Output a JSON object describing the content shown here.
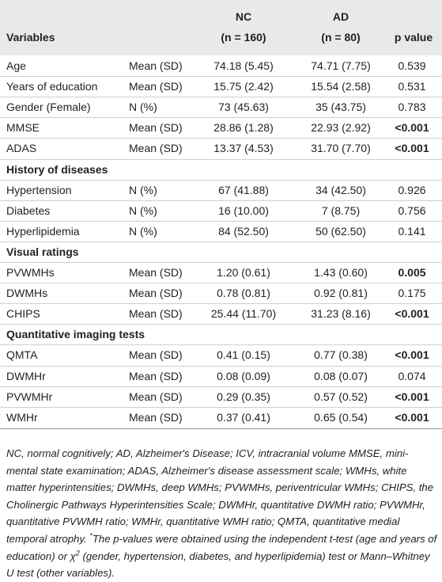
{
  "table": {
    "header": {
      "variables": "Variables",
      "nc": "NC",
      "nc_n": "(n = 160)",
      "ad": "AD",
      "ad_n": "(n = 80)",
      "p": "p value"
    },
    "rows": [
      {
        "variable": "Age",
        "measure": "Mean (SD)",
        "nc": "74.18 (5.45)",
        "ad": "74.71 (7.75)",
        "p": "0.539"
      },
      {
        "variable": "Years of education",
        "measure": "Mean (SD)",
        "nc": "15.75 (2.42)",
        "ad": "15.54 (2.58)",
        "p": "0.531"
      },
      {
        "variable": "Gender (Female)",
        "measure": "N (%)",
        "nc": "73 (45.63)",
        "ad": "35 (43.75)",
        "p": "0.783"
      },
      {
        "variable": "MMSE",
        "measure": "Mean (SD)",
        "nc": "28.86 (1.28)",
        "ad": "22.93 (2.92)",
        "p": "<0.001",
        "bold": true
      },
      {
        "variable": "ADAS",
        "measure": "Mean (SD)",
        "nc": "13.37 (4.53)",
        "ad": "31.70 (7.70)",
        "p": "<0.001",
        "bold": true
      },
      {
        "section": "History of diseases"
      },
      {
        "variable": "Hypertension",
        "measure": "N (%)",
        "nc": "67 (41.88)",
        "ad": "34 (42.50)",
        "p": "0.926"
      },
      {
        "variable": "Diabetes",
        "measure": "N (%)",
        "nc": "16 (10.00)",
        "ad": "7 (8.75)",
        "p": "0.756"
      },
      {
        "variable": "Hyperlipidemia",
        "measure": "N (%)",
        "nc": "84 (52.50)",
        "ad": "50 (62.50)",
        "p": "0.141"
      },
      {
        "section": "Visual ratings"
      },
      {
        "variable": "PVWMHs",
        "measure": "Mean (SD)",
        "nc": "1.20 (0.61)",
        "ad": "1.43 (0.60)",
        "p": "0.005",
        "bold": true
      },
      {
        "variable": "DWMHs",
        "measure": "Mean (SD)",
        "nc": "0.78 (0.81)",
        "ad": "0.92 (0.81)",
        "p": "0.175"
      },
      {
        "variable": "CHIPS",
        "measure": "Mean (SD)",
        "nc": "25.44 (11.70)",
        "ad": "31.23 (8.16)",
        "p": "<0.001",
        "bold": true
      },
      {
        "section": "Quantitative imaging tests"
      },
      {
        "variable": "QMTA",
        "measure": "Mean (SD)",
        "nc": "0.41 (0.15)",
        "ad": "0.77 (0.38)",
        "p": "<0.001",
        "bold": true
      },
      {
        "variable": "DWMHr",
        "measure": "Mean (SD)",
        "nc": "0.08 (0.09)",
        "ad": "0.08 (0.07)",
        "p": "0.074"
      },
      {
        "variable": "PVWMHr",
        "measure": "Mean (SD)",
        "nc": "0.29 (0.35)",
        "ad": "0.57 (0.52)",
        "p": "<0.001",
        "bold": true
      },
      {
        "variable": "WMHr",
        "measure": "Mean (SD)",
        "nc": "0.37 (0.41)",
        "ad": "0.65 (0.54)",
        "p": "<0.001",
        "bold": true
      }
    ],
    "footnote": [
      {
        "text": "NC, normal cognitively; AD, Alzheimer's Disease; ICV, intracranial volume MMSE, mini-mental state examination; ADAS, Alzheimer's disease assessment scale; WMHs, white matter hyperintensities; DWMHs, deep WMHs; PVWMHs, periventricular WMHs; CHIPS, the Cholinergic Pathways Hyperintensities Scale; DWMHr, quantitative DWMH ratio; PVWMHr, quantitative PVWMH ratio; WMHr, quantitative WMH ratio; QMTA, quantitative medial temporal atrophy. "
      },
      {
        "text": "*",
        "sup": true
      },
      {
        "text": "The p-values were obtained using the independent t-test (age and years of education) or χ"
      },
      {
        "text": "2",
        "sup": true
      },
      {
        "text": " (gender, hypertension, diabetes, and hyperlipidemia) test or Mann–Whitney U test (other variables)."
      }
    ]
  }
}
